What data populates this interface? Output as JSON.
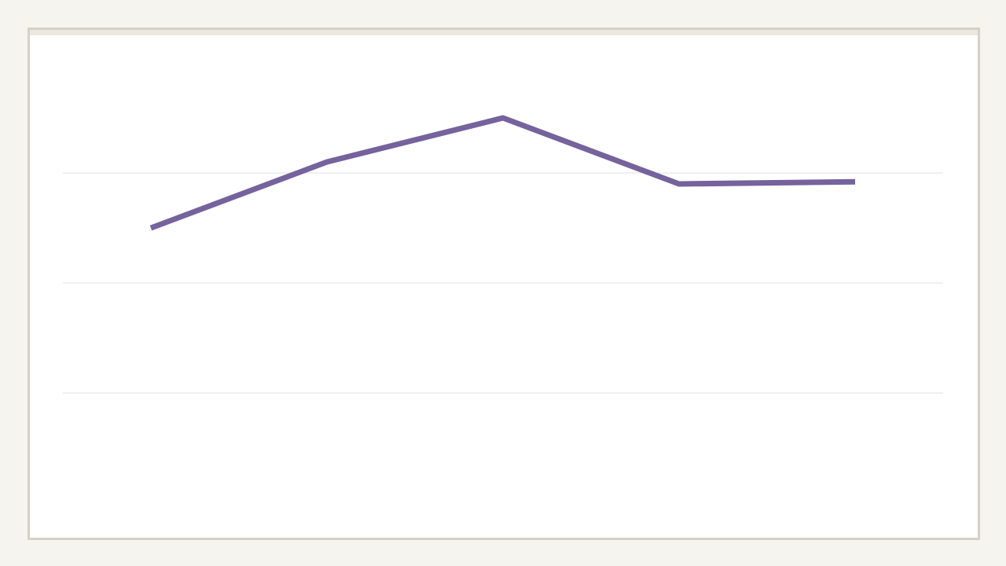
{
  "colors": {
    "page_background": "#f5f4ef",
    "frame_border": "#d6d0c5",
    "frame_topbar": "#ece8e0",
    "panel_background": "#ffffff",
    "gridline": "#e2e2e2",
    "series_line": "#76629c"
  },
  "chart_data": {
    "type": "line",
    "title": "",
    "xlabel": "",
    "ylabel": "",
    "categories": [
      "",
      "",
      "",
      "",
      ""
    ],
    "series": [
      {
        "values": [
          2.5,
          3.1,
          3.5,
          2.9,
          2.92
        ]
      }
    ],
    "ylim": [
      0,
      4
    ],
    "yticks": [
      1,
      2,
      3
    ],
    "grid": true,
    "legend": "none",
    "tick_labels_shown": false
  }
}
